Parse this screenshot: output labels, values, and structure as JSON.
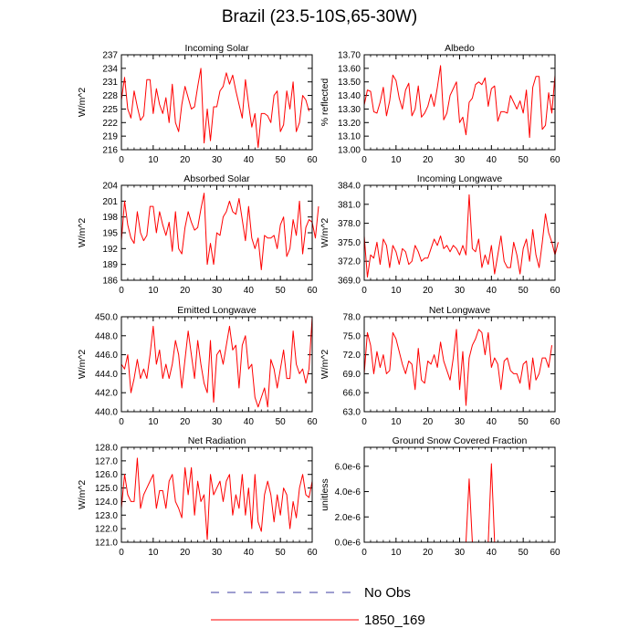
{
  "title": "Brazil (23.5-10S,65-30W)",
  "legend": [
    {
      "label": "No Obs",
      "color": "#3c3ca0",
      "dash": true
    },
    {
      "label": "1850_169",
      "color": "#ff0000",
      "dash": false
    }
  ],
  "chart_data": [
    {
      "type": "line",
      "title": "Incoming Solar",
      "ylabel": "W/m^2",
      "ylim": [
        216,
        237
      ],
      "yticks": [
        "216",
        "219",
        "222",
        "225",
        "228",
        "231",
        "234",
        "237"
      ],
      "xlim": [
        0,
        60
      ],
      "xticks": [
        "0",
        "10",
        "20",
        "30",
        "40",
        "50",
        "60"
      ],
      "series": [
        {
          "name": "1850_169",
          "color": "#ff0000",
          "values": [
            227.0,
            232.0,
            225.0,
            223.0,
            229.0,
            225.5,
            222.5,
            223.5,
            231.5,
            231.5,
            224.0,
            229.5,
            226.0,
            224.0,
            227.5,
            222.0,
            230.5,
            222.0,
            220.0,
            226.0,
            230.0,
            227.5,
            225.0,
            225.5,
            230.0,
            234.0,
            217.5,
            225.0,
            218.0,
            225.5,
            225.5,
            229.0,
            230.0,
            233.0,
            230.5,
            232.5,
            229.0,
            226.0,
            223.0,
            231.5,
            226.0,
            221.0,
            224.0,
            216.5,
            224.0,
            224.0,
            223.5,
            222.0,
            228.0,
            229.0,
            220.0,
            221.5,
            229.0,
            225.0,
            231.0,
            220.0,
            222.0,
            228.0,
            227.0,
            224.5
          ]
        }
      ]
    },
    {
      "type": "line",
      "title": "Albedo",
      "ylabel": "% reflected",
      "ylim": [
        13.0,
        13.7
      ],
      "yticks": [
        "13.00",
        "13.10",
        "13.20",
        "13.30",
        "13.40",
        "13.50",
        "13.60",
        "13.70"
      ],
      "xlim": [
        0,
        60
      ],
      "xticks": [
        "0",
        "10",
        "20",
        "30",
        "40",
        "50",
        "60"
      ],
      "series": [
        {
          "name": "1850_169",
          "color": "#ff0000",
          "values": [
            13.33,
            13.44,
            13.43,
            13.28,
            13.27,
            13.35,
            13.46,
            13.25,
            13.36,
            13.55,
            13.51,
            13.38,
            13.3,
            13.44,
            13.49,
            13.25,
            13.3,
            13.47,
            13.24,
            13.27,
            13.32,
            13.41,
            13.32,
            13.46,
            13.62,
            13.22,
            13.27,
            13.4,
            13.45,
            13.5,
            13.2,
            13.24,
            13.11,
            13.35,
            13.38,
            13.48,
            13.5,
            13.48,
            13.53,
            13.32,
            13.45,
            13.47,
            13.21,
            13.28,
            13.28,
            13.27,
            13.4,
            13.35,
            13.3,
            13.36,
            13.27,
            13.44,
            13.09,
            13.46,
            13.54,
            13.54,
            13.15,
            13.18,
            13.42,
            13.27,
            13.55
          ]
        }
      ]
    },
    {
      "type": "line",
      "title": "Absorbed Solar",
      "ylabel": "W/m^2",
      "ylim": [
        186,
        204
      ],
      "yticks": [
        "186",
        "189",
        "192",
        "195",
        "198",
        "201",
        "204"
      ],
      "xlim": [
        0,
        60
      ],
      "xticks": [
        "0",
        "10",
        "20",
        "30",
        "40",
        "50",
        "60"
      ],
      "series": [
        {
          "name": "1850_169",
          "color": "#ff0000",
          "values": [
            193.5,
            201.0,
            196.5,
            194.0,
            193.0,
            199.0,
            195.0,
            193.5,
            194.5,
            200.0,
            200.0,
            195.0,
            199.0,
            196.5,
            194.5,
            197.0,
            191.5,
            199.0,
            192.0,
            191.0,
            196.0,
            199.0,
            197.0,
            195.5,
            196.0,
            199.5,
            202.5,
            189.0,
            193.0,
            189.0,
            195.0,
            194.5,
            198.0,
            199.0,
            201.0,
            199.0,
            198.5,
            201.5,
            197.5,
            193.5,
            200.0,
            194.0,
            192.0,
            194.0,
            188.0,
            194.5,
            194.0,
            194.0,
            194.5,
            192.0,
            196.5,
            198.0,
            190.5,
            192.0,
            197.5,
            194.5,
            201.0,
            191.0,
            196.0,
            197.5,
            197.0,
            194.0,
            200.0
          ]
        }
      ]
    },
    {
      "type": "line",
      "title": "Incoming Longwave",
      "ylabel": "W/m^2",
      "ylim": [
        369,
        384
      ],
      "yticks": [
        "369.0",
        "372.0",
        "375.0",
        "378.0",
        "381.0",
        "384.0"
      ],
      "xlim": [
        0,
        60
      ],
      "xticks": [
        "0",
        "10",
        "20",
        "30",
        "40",
        "50",
        "60"
      ],
      "series": [
        {
          "name": "1850_169",
          "color": "#ff0000",
          "values": [
            376.0,
            369.5,
            373.0,
            372.5,
            375.0,
            371.5,
            375.5,
            374.5,
            371.0,
            374.5,
            373.5,
            371.5,
            374.0,
            373.5,
            371.5,
            372.0,
            374.5,
            373.5,
            372.0,
            372.5,
            372.5,
            374.0,
            375.5,
            374.5,
            376.0,
            374.0,
            374.5,
            373.5,
            374.5,
            374.0,
            373.0,
            374.5,
            373.0,
            382.5,
            374.0,
            373.5,
            375.5,
            371.0,
            373.0,
            371.5,
            374.5,
            370.0,
            373.0,
            376.0,
            372.0,
            371.0,
            371.0,
            375.0,
            373.0,
            370.0,
            374.0,
            375.5,
            372.0,
            377.0,
            373.0,
            371.0,
            375.0,
            379.5,
            376.5,
            375.0,
            373.0,
            375.0
          ]
        }
      ]
    },
    {
      "type": "line",
      "title": "Emitted Longwave",
      "ylabel": "W/m^2",
      "ylim": [
        440,
        450
      ],
      "yticks": [
        "440.0",
        "442.0",
        "444.0",
        "446.0",
        "448.0",
        "450.0"
      ],
      "xlim": [
        0,
        60
      ],
      "xticks": [
        "0",
        "10",
        "20",
        "30",
        "40",
        "50",
        "60"
      ],
      "series": [
        {
          "name": "1850_169",
          "color": "#ff0000",
          "values": [
            445.0,
            444.5,
            446.0,
            442.0,
            443.5,
            445.5,
            443.5,
            444.5,
            443.5,
            446.0,
            449.0,
            445.0,
            446.5,
            443.5,
            445.0,
            443.5,
            445.0,
            447.5,
            446.0,
            442.5,
            445.5,
            448.5,
            446.0,
            443.5,
            447.5,
            445.0,
            443.0,
            442.0,
            447.5,
            441.0,
            446.0,
            446.5,
            445.0,
            447.0,
            449.0,
            446.5,
            447.0,
            442.5,
            447.0,
            448.0,
            444.5,
            445.0,
            441.5,
            440.5,
            441.5,
            442.5,
            440.5,
            445.5,
            444.5,
            442.5,
            444.5,
            446.5,
            443.5,
            443.5,
            448.5,
            445.0,
            444.0,
            444.5,
            443.0,
            444.5,
            450.0
          ]
        }
      ]
    },
    {
      "type": "line",
      "title": "Net Longwave",
      "ylabel": "W/m^2",
      "ylim": [
        63,
        78
      ],
      "yticks": [
        "63.0",
        "66.0",
        "69.0",
        "72.0",
        "75.0",
        "78.0"
      ],
      "xlim": [
        0,
        60
      ],
      "xticks": [
        "0",
        "10",
        "20",
        "30",
        "40",
        "50",
        "60"
      ],
      "series": [
        {
          "name": "1850_169",
          "color": "#ff0000",
          "values": [
            69.0,
            75.5,
            73.5,
            69.0,
            72.5,
            70.0,
            72.0,
            69.0,
            69.5,
            75.5,
            74.5,
            72.5,
            70.5,
            69.0,
            71.0,
            70.5,
            66.5,
            73.0,
            68.0,
            67.5,
            71.0,
            70.5,
            72.0,
            70.0,
            74.0,
            71.0,
            69.5,
            68.0,
            71.5,
            76.0,
            66.5,
            72.5,
            64.0,
            71.5,
            73.5,
            74.5,
            76.0,
            75.5,
            72.0,
            75.5,
            70.0,
            71.5,
            70.5,
            66.5,
            71.0,
            71.5,
            69.5,
            69.0,
            69.0,
            67.5,
            70.5,
            71.0,
            66.5,
            71.5,
            68.0,
            69.0,
            71.5,
            71.5,
            70.0,
            73.5
          ]
        }
      ]
    },
    {
      "type": "line",
      "title": "Net Radiation",
      "ylabel": "W/m^2",
      "ylim": [
        121,
        128
      ],
      "yticks": [
        "121.0",
        "122.0",
        "123.0",
        "124.0",
        "125.0",
        "126.0",
        "127.0",
        "128.0"
      ],
      "xlim": [
        0,
        60
      ],
      "xticks": [
        "0",
        "10",
        "20",
        "30",
        "40",
        "50",
        "60"
      ],
      "series": [
        {
          "name": "1850_169",
          "color": "#ff0000",
          "values": [
            123.5,
            126.0,
            124.5,
            124.0,
            124.0,
            127.2,
            123.5,
            124.5,
            125.0,
            125.5,
            126.0,
            123.5,
            124.8,
            124.8,
            123.5,
            125.5,
            126.0,
            124.0,
            123.5,
            122.8,
            126.5,
            124.5,
            126.5,
            123.0,
            125.5,
            124.0,
            124.5,
            121.2,
            126.0,
            124.5,
            125.0,
            125.5,
            124.0,
            125.5,
            126.0,
            123.0,
            124.5,
            123.5,
            126.0,
            123.0,
            125.0,
            122.0,
            126.0,
            122.5,
            121.8,
            124.5,
            125.5,
            124.5,
            122.5,
            124.5,
            123.0,
            125.0,
            124.5,
            122.0,
            124.0,
            122.8,
            125.0,
            126.0,
            124.5,
            124.3,
            125.5
          ]
        }
      ]
    },
    {
      "type": "line",
      "title": "Ground Snow Covered Fraction",
      "ylabel": "unitless",
      "ylim": [
        0,
        7.5e-06
      ],
      "yticks": [
        "0.0e-6",
        "2.0e-6",
        "4.0e-6",
        "6.0e-6"
      ],
      "xlim": [
        0,
        60
      ],
      "xticks": [
        "0",
        "10",
        "20",
        "30",
        "40",
        "50",
        "60"
      ],
      "series": [
        {
          "name": "1850_169",
          "color": "#ff0000",
          "values": [
            0,
            0,
            0,
            0,
            0,
            0,
            0,
            0,
            0,
            0,
            0,
            0,
            0,
            0,
            0,
            0,
            0,
            0,
            0,
            0,
            0,
            0,
            0,
            0,
            0,
            0,
            0,
            0,
            0,
            0,
            0,
            0,
            0,
            5e-06,
            0,
            0,
            0,
            0,
            0,
            0,
            6.2e-06,
            0,
            0,
            0,
            0,
            0,
            0,
            0,
            0,
            0,
            0,
            0,
            0,
            0,
            0,
            0,
            0,
            0,
            0,
            0,
            0
          ]
        }
      ]
    }
  ]
}
